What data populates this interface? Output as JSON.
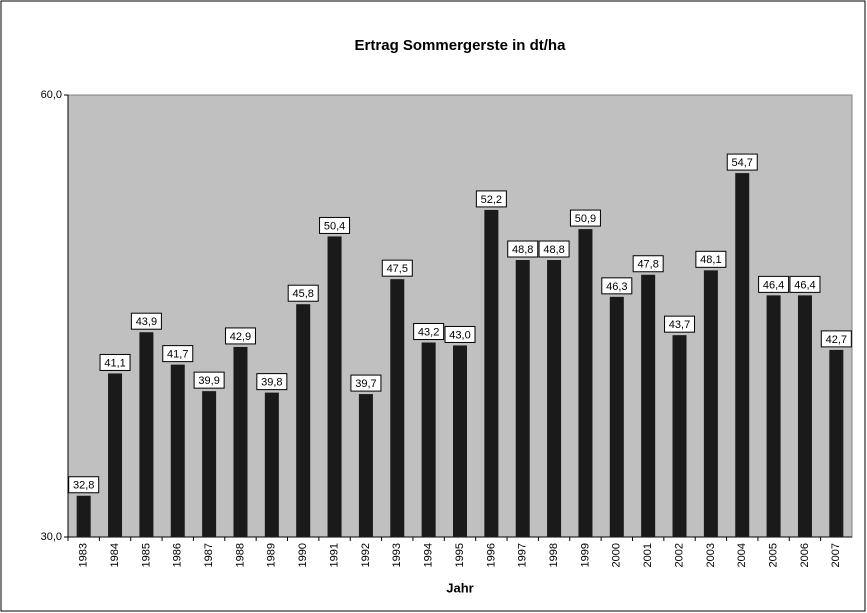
{
  "chart_data": {
    "type": "bar",
    "title": "Ertrag Sommergerste in dt/ha",
    "x_label": "Jahr",
    "categories": [
      "1983",
      "1984",
      "1985",
      "1986",
      "1987",
      "1988",
      "1989",
      "1990",
      "1991",
      "1992",
      "1993",
      "1994",
      "1995",
      "1996",
      "1997",
      "1998",
      "1999",
      "2000",
      "2001",
      "2002",
      "2003",
      "2004",
      "2005",
      "2006",
      "2007"
    ],
    "values": [
      32.8,
      41.1,
      43.9,
      41.7,
      39.9,
      42.9,
      39.8,
      45.8,
      50.4,
      39.7,
      47.5,
      43.2,
      43.0,
      52.2,
      48.8,
      48.8,
      50.9,
      46.3,
      47.8,
      43.7,
      48.1,
      54.7,
      46.4,
      46.4,
      42.7
    ],
    "value_labels": [
      "32,8",
      "41,1",
      "43,9",
      "41,7",
      "39,9",
      "42,9",
      "39,8",
      "45,8",
      "50,4",
      "39,7",
      "47,5",
      "43,2",
      "43,0",
      "52,2",
      "48,8",
      "48,8",
      "50,9",
      "46,3",
      "47,8",
      "43,7",
      "48,1",
      "54,7",
      "46,4",
      "46,4",
      "42,7"
    ],
    "color": "#1a1a1a",
    "plot_background": "#c0c0c0",
    "ylim": [
      30,
      60
    ],
    "yticks": [
      {
        "value": 30,
        "label": "30,0"
      },
      {
        "value": 60,
        "label": "60,0"
      }
    ],
    "grid": false
  }
}
